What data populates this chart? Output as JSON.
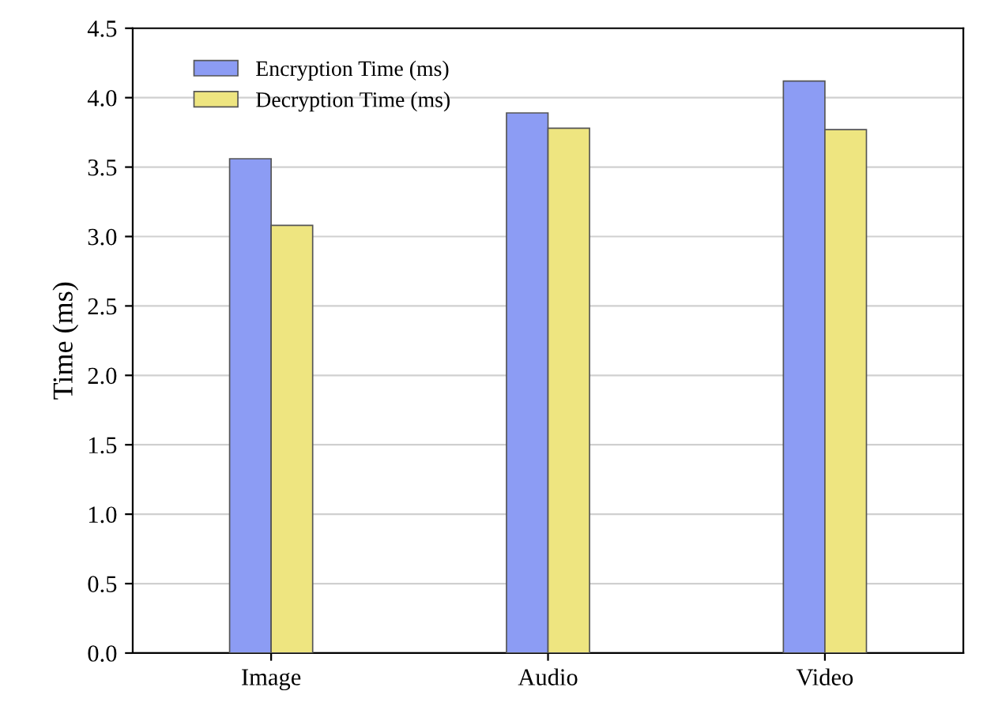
{
  "chart_data": {
    "type": "bar",
    "ylabel": "Time (ms)",
    "categories": [
      "Image",
      "Audio",
      "Video"
    ],
    "series": [
      {
        "name": "Encryption Time (ms)",
        "color": "#8c9cf4",
        "values": [
          3.56,
          3.89,
          4.12
        ]
      },
      {
        "name": "Decryption Time (ms)",
        "color": "#eee580",
        "values": [
          3.08,
          3.78,
          3.77
        ]
      }
    ],
    "ylim": [
      0,
      4.5
    ],
    "yticks": [
      {
        "value": 0,
        "label": "0.0"
      },
      0.5,
      {
        "value": 1,
        "label": "1.0"
      },
      1.5,
      {
        "value": 2,
        "label": "2.0"
      },
      2.5,
      {
        "value": 3,
        "label": "3.0"
      },
      3.5,
      {
        "value": 4,
        "label": "4.0"
      },
      4.5
    ],
    "grid": "y",
    "legend": "top left"
  }
}
